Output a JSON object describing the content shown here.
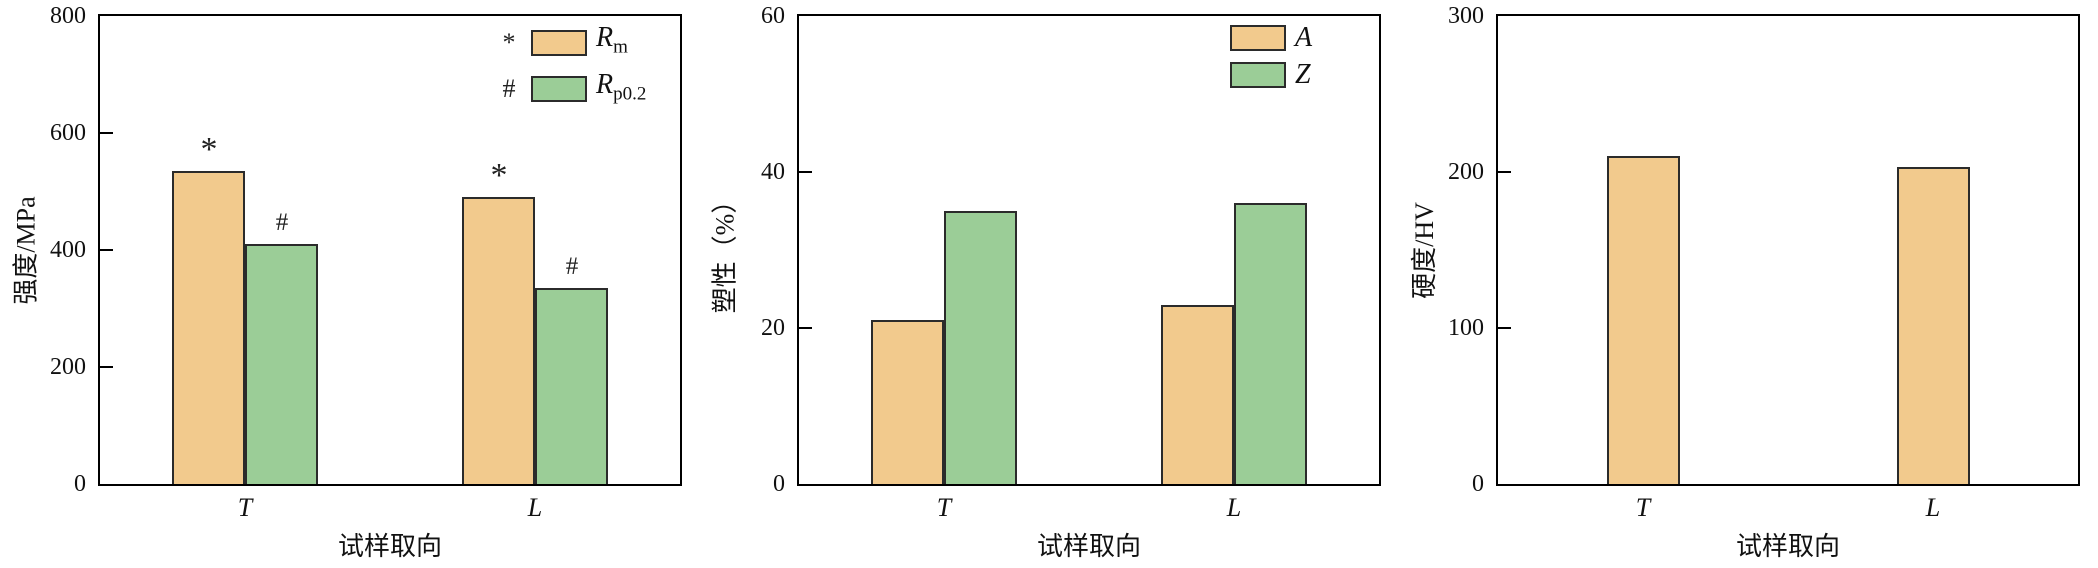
{
  "page": {
    "background": "#ffffff"
  },
  "style_colors": {
    "bar_fill_orange": "#F2CA8D",
    "bar_fill_green": "#9BCD97",
    "bar_edge": "#2b2b2b",
    "axis": "#000000",
    "text": "#111111"
  },
  "chart_data": [
    {
      "type": "bar",
      "title": "",
      "xlabel": "试样取向",
      "ylabel": "强度/MPa",
      "categories": [
        "T",
        "L"
      ],
      "ylim": [
        0,
        800
      ],
      "yticks": [
        0,
        200,
        400,
        600,
        800
      ],
      "grid": false,
      "legend_position": "top-right",
      "bar_markers": true,
      "series": [
        {
          "name": "Rm",
          "label_main": "R",
          "label_sub": "m",
          "marker": "*",
          "color": "#F2CA8D",
          "values": [
            535,
            490
          ]
        },
        {
          "name": "Rp0.2",
          "label_main": "R",
          "label_sub": "p0.2",
          "marker": "#",
          "color": "#9BCD97",
          "values": [
            410,
            335
          ]
        }
      ]
    },
    {
      "type": "bar",
      "title": "",
      "xlabel": "试样取向",
      "ylabel": "塑性（%）",
      "categories": [
        "T",
        "L"
      ],
      "ylim": [
        0,
        60
      ],
      "yticks": [
        0,
        20,
        40,
        60
      ],
      "grid": false,
      "legend_position": "top-right",
      "bar_markers": false,
      "series": [
        {
          "name": "A",
          "label_main": "A",
          "label_sub": "",
          "marker": "",
          "color": "#F2CA8D",
          "values": [
            21,
            23
          ]
        },
        {
          "name": "Z",
          "label_main": "Z",
          "label_sub": "",
          "marker": "",
          "color": "#9BCD97",
          "values": [
            35,
            36
          ]
        }
      ]
    },
    {
      "type": "bar",
      "title": "",
      "xlabel": "试样取向",
      "ylabel": "硬度/HV",
      "categories": [
        "T",
        "L"
      ],
      "ylim": [
        0,
        300
      ],
      "yticks": [
        0,
        100,
        200,
        300
      ],
      "grid": false,
      "legend_position": "none",
      "bar_markers": false,
      "series": [
        {
          "name": "hardness",
          "label_main": "",
          "label_sub": "",
          "marker": "",
          "color": "#F2CA8D",
          "values": [
            210,
            203
          ]
        }
      ]
    }
  ]
}
